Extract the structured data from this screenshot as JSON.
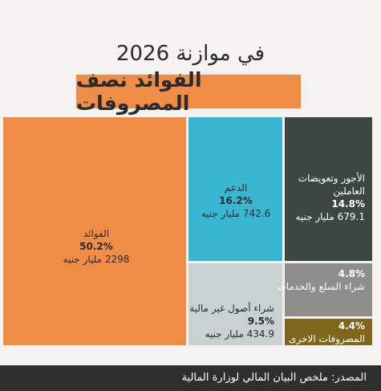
{
  "title": {
    "line1": "في موازنة 2026",
    "line2": "الفوائد نصف المصروفات"
  },
  "colors": {
    "accent": "#ef8c45",
    "background": "#f4f3f1",
    "footer": "#2f2f2f"
  },
  "footer": {
    "source": "المصدر: ملخص البيان المالي لوزارة المالية"
  },
  "chart_data": {
    "type": "treemap",
    "title": "الفوائد نصف المصروفات",
    "unit": "مليار جنيه",
    "items": [
      {
        "label": "الفوائد",
        "percent": 50.2,
        "percent_label": "50.2%",
        "value_label": "2298 مليار جنيه",
        "color": "#ef8c45"
      },
      {
        "label": "الدعم",
        "percent": 16.2,
        "percent_label": "16.2%",
        "value_label": "742.6 مليار جنيه",
        "color": "#38b6d2"
      },
      {
        "label": "الأجور وتعويضات العاملين",
        "percent": 14.8,
        "percent_label": "14.8%",
        "value_label": "679.1 مليار جنيه",
        "color": "#3e4640"
      },
      {
        "label": "شراء أصول غير مالية",
        "percent": 9.5,
        "percent_label": "9.5%",
        "value_label": "434.9 مليار جنيه",
        "color": "#c9d1d1"
      },
      {
        "label": "شراء السلع والخدمات",
        "percent": 4.8,
        "percent_label": "4.8%",
        "value_label": "",
        "color": "#8e8e8c"
      },
      {
        "label": "المصروفات الاخرى",
        "percent": 4.4,
        "percent_label": "4.4%",
        "value_label": "",
        "color": "#7f661a"
      }
    ]
  }
}
